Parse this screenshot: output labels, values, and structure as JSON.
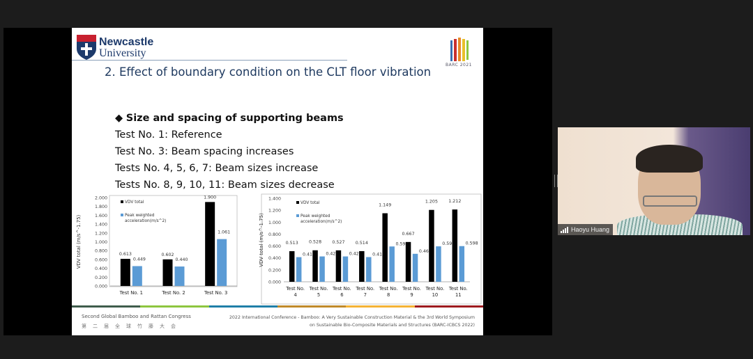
{
  "slide": {
    "university": {
      "line1": "Newcastle",
      "line2": "University"
    },
    "conference_logo_text": "BARC 2021",
    "title": "2. Effect of boundary condition on the CLT floor vibration",
    "heading": "Size and spacing of supporting beams",
    "bullet_icon": "diamond-bullet",
    "lines": [
      "Test No. 1: Reference",
      "Test No. 3: Beam spacing increases",
      "Tests No. 4, 5, 6, 7: Beam sizes increase",
      "Tests No. 8, 9, 10, 11: Beam sizes decrease"
    ],
    "footer_left": "Second Global Bamboo and Rattan Congress",
    "footer_left_cn": "第二届全球竹藤大会",
    "footer_right_1": "2022 International Conference - Bamboo: A Very Sustainable Construction Material & the 3rd World Symposium",
    "footer_right_2": "on Sustainable Bio-Composite Materials and Structures (BARC-ICBCS 2022)",
    "footer_colors": [
      "#3f5c4c",
      "#8dc63f",
      "#1f7fa8",
      "#c08a2a",
      "#f5b335",
      "#9e1b1f"
    ]
  },
  "chart_data": [
    {
      "type": "bar",
      "ylabel": "VDV total (m/s^-1.75)",
      "ylim": [
        0,
        2.0
      ],
      "yticks": [
        "0.000",
        "0.200",
        "0.400",
        "0.600",
        "0.800",
        "1.000",
        "1.200",
        "1.400",
        "1.600",
        "1.800",
        "2.000"
      ],
      "categories": [
        "Test No. 1",
        "Test No. 2",
        "Test No. 3"
      ],
      "legend_position": "top-left",
      "series": [
        {
          "name": "VDV total",
          "color": "#000000",
          "values": [
            0.613,
            0.602,
            1.9
          ],
          "labels": [
            "0.613",
            "0.602",
            "1.900"
          ]
        },
        {
          "name": "Peak weighted acceleration(m/s^2)",
          "color": "#5b9bd5",
          "values": [
            0.449,
            0.44,
            1.061
          ],
          "labels": [
            "0.449",
            "0.440",
            "1.061"
          ]
        }
      ]
    },
    {
      "type": "bar",
      "ylabel": "VDV total (m/s^-1.75)",
      "ylim": [
        0,
        1.4
      ],
      "yticks": [
        "0.000",
        "0.200",
        "0.400",
        "0.600",
        "0.800",
        "1.000",
        "1.200",
        "1.400"
      ],
      "categories": [
        [
          "Test No.",
          "4"
        ],
        [
          "Test No.",
          "5"
        ],
        [
          "Test No.",
          "6"
        ],
        [
          "Test No.",
          "7"
        ],
        [
          "Test No.",
          "8"
        ],
        [
          "Test No.",
          "9"
        ],
        [
          "Test No.",
          "10"
        ],
        [
          "Test No.",
          "11"
        ]
      ],
      "legend_position": "top-left",
      "series": [
        {
          "name": "VDV total",
          "color": "#000000",
          "values": [
            0.513,
            0.528,
            0.527,
            0.514,
            1.149,
            0.667,
            1.205,
            1.212
          ],
          "labels": [
            "0.513",
            "0.528",
            "0.527",
            "0.514",
            "1.149",
            "0.667",
            "1.205",
            "1.212"
          ]
        },
        {
          "name": "Peak weighted acceleration(m/s^2)",
          "color": "#5b9bd5",
          "values": [
            0.413,
            0.425,
            0.425,
            0.414,
            0.592,
            0.469,
            0.594,
            0.598
          ],
          "labels": [
            "0.413",
            "0.425",
            "0.425",
            "0.414",
            "0.592",
            "0.469",
            "0.594",
            "0.598"
          ]
        }
      ]
    }
  ],
  "participant": {
    "name": "Haoyu Huang",
    "signal_icon": "signal-bars-icon"
  }
}
